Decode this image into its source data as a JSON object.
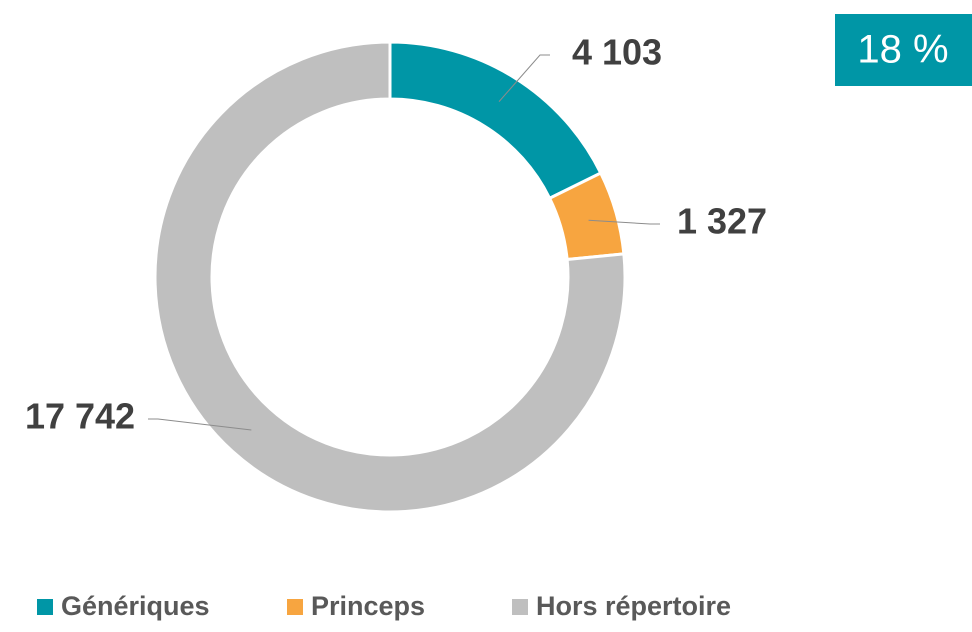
{
  "chart_data": {
    "type": "donut",
    "categories": [
      "Génériques",
      "Princeps",
      "Hors répertoire"
    ],
    "values": [
      4103,
      1327,
      17742
    ],
    "value_labels": [
      "4 103",
      "1 327",
      "17 742"
    ],
    "colors": [
      "#0096a6",
      "#f7a540",
      "#bfbfbf"
    ],
    "annotation": "18 %",
    "legend": "bottom"
  }
}
